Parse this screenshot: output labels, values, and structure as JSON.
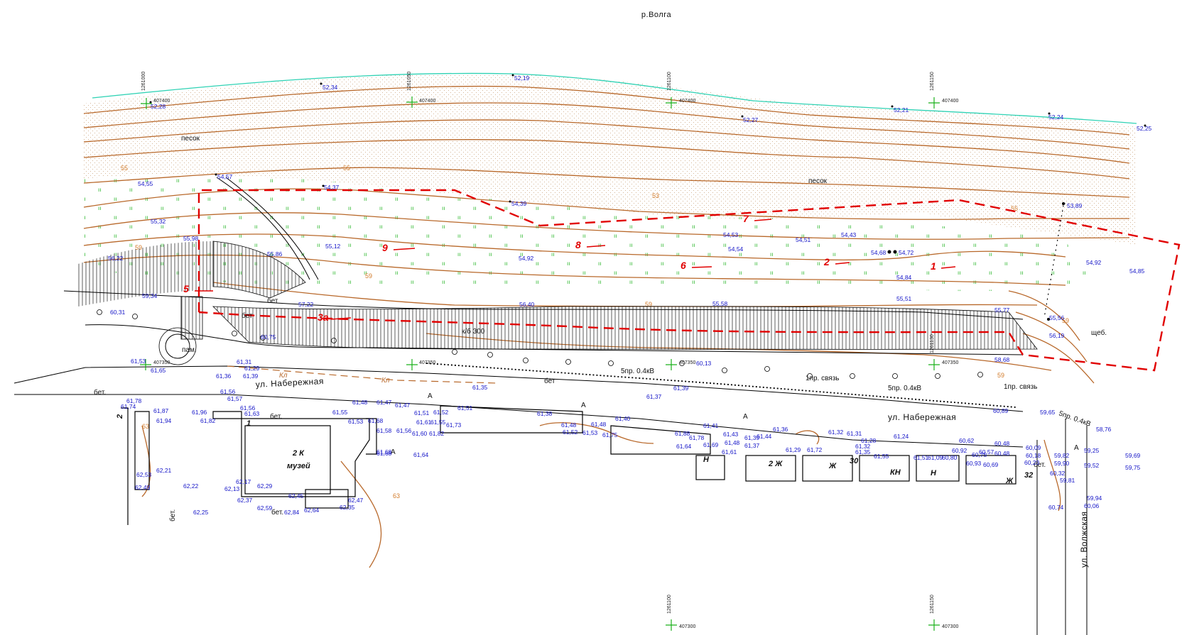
{
  "river_label": "р.Волга",
  "grid_labels": {
    "v1": "1261000",
    "v2": "1261050",
    "v3": "1261100",
    "v4": "1261150",
    "v3b": "1261100",
    "v4b": "1261150",
    "v5": "1261130",
    "h1": "407400",
    "h2": "407400",
    "h3": "407400",
    "h4": "407400",
    "h5": "407350",
    "h6": "407350",
    "h7": "407350",
    "h8": "407350",
    "h9": "407300",
    "h10": "407300"
  },
  "surface_labels": {
    "sand1": "песок",
    "sand2": "песок",
    "concrete1": "бет",
    "concrete2": "бет",
    "concrete3": "бет",
    "concrete4": "бет.",
    "concrete5": "бет.",
    "concrete6": "бет.",
    "concrete7": "бет.",
    "concrete8": "бет.",
    "gravel": "щеб.",
    "monument": "пам.",
    "stairs_note": "к/б 300",
    "asphalt1": "А",
    "asphalt2": "А",
    "asphalt3": "А",
    "asphalt4": "А",
    "asphalt5": "А"
  },
  "utility_labels": {
    "power1": "5пр. 0.4кВ",
    "power2": "5пр. 0.4кВ",
    "power3": "5пр. 0.4кВ",
    "comm1": "1пр. связь",
    "comm2": "1пр. связь",
    "sewer1": "Кл",
    "sewer2": "Кл"
  },
  "streets": {
    "nab1": "ул. Набережная",
    "nab2": "ул. Набережная",
    "volzh": "ул. Волжская"
  },
  "buildings": {
    "museum_num": "2 К",
    "museum_name": "музей",
    "b_n1": "Н",
    "b_2zh": "2 Ж",
    "b_zh1": "Ж",
    "b_30": "30",
    "b_kn": "КН",
    "b_n2": "Н",
    "b_zh2": "Ж",
    "b_32": "32",
    "b_1": "1",
    "b_2": "2"
  },
  "sections": [
    "1",
    "2",
    "3",
    "5",
    "6",
    "7",
    "8",
    "9",
    "3а"
  ],
  "elevations": {
    "e1": "52,28",
    "e2": "52,34",
    "e3": "52,19",
    "e4": "52,27",
    "e5": "52,21",
    "e6": "52,24",
    "e7": "52,25",
    "e8": "54,55",
    "e9": "54,57",
    "e10": "54,37",
    "e11": "54,39",
    "e12": "53,89",
    "e13": "55,32",
    "e14": "55,98",
    "e15": "55,12",
    "e16": "54,53",
    "e17": "54,51",
    "e18": "54,43",
    "e19": "54,54",
    "e20": "54,68",
    "e21": "54,72",
    "e22": "56,22",
    "e23": "55,86",
    "e24": "54,92",
    "e25": "54,84",
    "e26": "54,92",
    "e27": "54,85",
    "e28": "59,34",
    "e29": "57,22",
    "e30": "56,40",
    "e31": "55,58",
    "e32": "55,51",
    "e33": "55,77",
    "e34": "55,56",
    "e35": "56,19",
    "e36": "60,31",
    "e37": "60,75",
    "e38": "58,68",
    "e39": "61,53",
    "e40": "61,65",
    "e41": "61,36",
    "e42": "61,31",
    "e43": "61,29",
    "e44": "61,39",
    "e45": "61,35",
    "e46": "60,13",
    "e47": "61,39",
    "e48": "61,37",
    "e49": "60,89",
    "e50": "59,65",
    "e51": "58,76",
    "e52": "61,56",
    "e53": "61,78",
    "e54": "61,74",
    "e55": "61,87",
    "e56": "61,94",
    "e57": "61,96",
    "e58": "61,82",
    "e59": "61,57",
    "e60": "61,56",
    "e61": "61,63",
    "e62": "61,55",
    "e63": "61,48",
    "e64": "61,47",
    "e65": "61,47",
    "e66": "61,53",
    "e67": "61,68",
    "e68": "61,58",
    "e69": "61,68",
    "e70": "61,51",
    "e71": "61,52",
    "e72": "61,51",
    "e73": "61,56",
    "e74": "61,60",
    "e75": "61,61",
    "e76": "61,55",
    "e77": "61,82",
    "e78": "61,73",
    "e79": "61,64",
    "e80": "61,38",
    "e81": "61,48",
    "e82": "61,52",
    "e83": "61,48",
    "e84": "61,40",
    "e85": "61,53",
    "e86": "61,75",
    "e87": "61,88",
    "e88": "61,41",
    "e89": "61,78",
    "e90": "61,43",
    "e91": "61,64",
    "e92": "61,69",
    "e93": "61,48",
    "e94": "61,61",
    "e95": "61,39",
    "e96": "61,44",
    "e97": "61,37",
    "e98": "61,36",
    "e99": "61,32",
    "e100": "61,31",
    "e101": "61,28",
    "e102": "61,32",
    "e103": "61,29",
    "e104": "61,72",
    "e105": "61,35",
    "e106": "61,24",
    "e107": "61,55",
    "e108": "61,51",
    "e109": "61,09",
    "e110": "60,80",
    "e111": "60,62",
    "e112": "60,92",
    "e113": "60,75",
    "e114": "60,57",
    "e115": "60,48",
    "e116": "60,48",
    "e117": "60,09",
    "e118": "60,18",
    "e119": "60,23",
    "e120": "59,82",
    "e121": "59,90",
    "e122": "59,25",
    "e123": "59,69",
    "e124": "59,52",
    "e125": "59,75",
    "e126": "60,93",
    "e127": "60,69",
    "e128": "60,32",
    "e129": "59,81",
    "e130": "59,94",
    "e131": "60,06",
    "e132": "60,74",
    "e133": "62,53",
    "e134": "62,21",
    "e135": "62,49",
    "e136": "62,22",
    "e137": "62,13",
    "e138": "62,17",
    "e139": "62,29",
    "e140": "62,37",
    "e141": "62,25",
    "e142": "62,59",
    "e143": "62,84",
    "e144": "62,64",
    "e145": "62,45",
    "e146": "62,47",
    "e147": "62,35",
    "e148": "61,68"
  },
  "contour_labels": {
    "c1": "55",
    "c2": "55",
    "c3": "53",
    "c4": "55",
    "c5": "59",
    "c6": "59",
    "c7": "59",
    "c8": "59",
    "c9": "63",
    "c10": "63",
    "c11": "59"
  },
  "colors": {
    "elevation": "#1515c8",
    "contour": "#b8682a",
    "boundary": "#e10000",
    "grass": "#22b422",
    "waterline": "#2fd2b4"
  }
}
